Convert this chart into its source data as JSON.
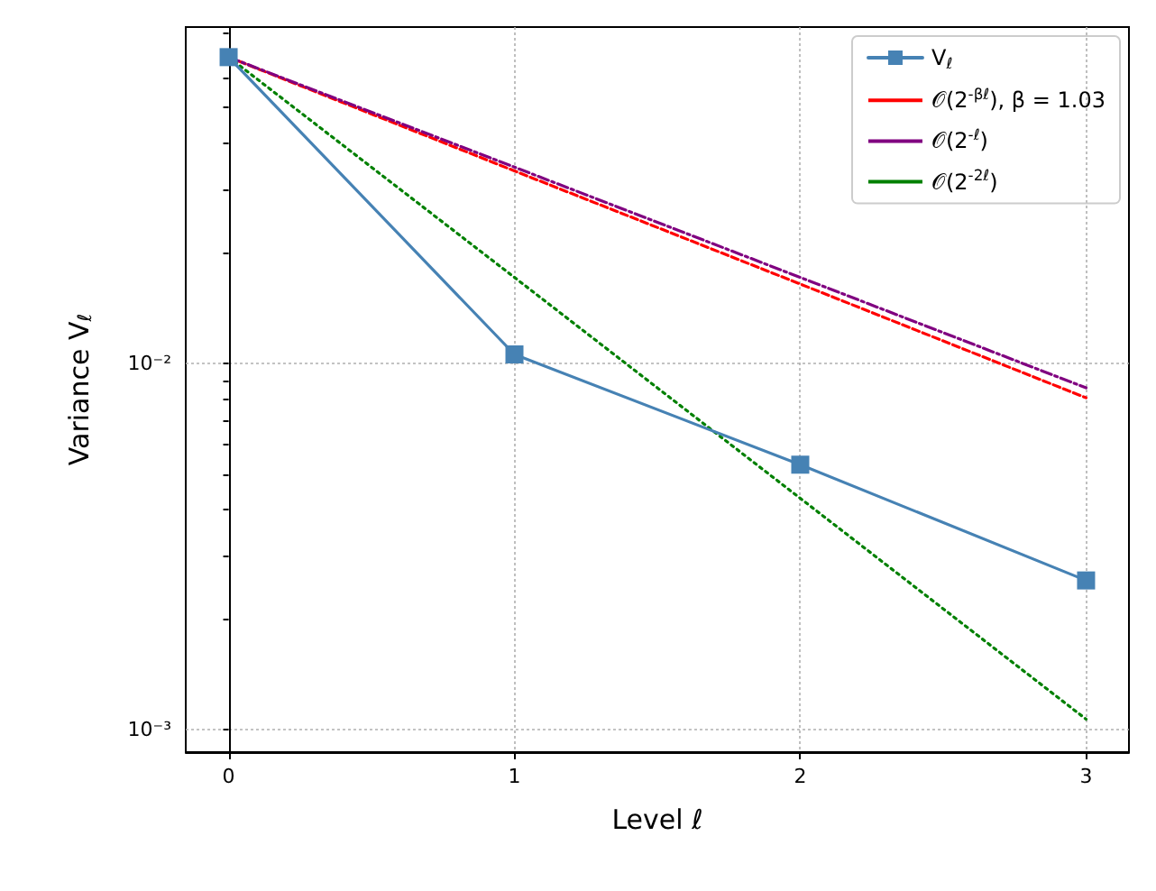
{
  "chart_data": {
    "type": "line",
    "xlabel": "Level ℓ",
    "ylabel": "Variance V$_{ℓ}$",
    "log": "y",
    "grid": true,
    "legend": "top right",
    "x": [
      0,
      1,
      2,
      3
    ],
    "xlim": [
      -0.15,
      3.15
    ],
    "xticks": [
      0,
      1,
      2,
      3
    ],
    "ylim": [
      0.00087,
      0.083
    ],
    "yticks": [
      {
        "value": 0.001,
        "label": "10⁻³"
      },
      {
        "value": 0.002,
        "label": null
      },
      {
        "value": 0.003,
        "label": null
      },
      {
        "value": 0.004,
        "label": null
      },
      {
        "value": 0.005,
        "label": null
      },
      {
        "value": 0.006,
        "label": null
      },
      {
        "value": 0.007,
        "label": null
      },
      {
        "value": 0.008,
        "label": null
      },
      {
        "value": 0.009,
        "label": null
      },
      {
        "value": 0.01,
        "label": "10⁻²"
      },
      {
        "value": 0.02,
        "label": null
      },
      {
        "value": 0.03,
        "label": null
      },
      {
        "value": 0.04,
        "label": null
      },
      {
        "value": 0.05,
        "label": null
      },
      {
        "value": 0.06,
        "label": null
      },
      {
        "value": 0.07,
        "label": null
      },
      {
        "value": 0.08,
        "label": null
      }
    ],
    "series": [
      {
        "name": "V$_{ℓ}$",
        "color": "#4682b4",
        "values": [
          0.0687,
          0.0106,
          0.0053,
          0.00256
        ],
        "marker": "square",
        "line_style": "solid"
      },
      {
        "name": "𝒪(2$^{-βℓ}$), β = 1.03",
        "color": "#ff0000",
        "values": [
          0.0687,
          0.0336,
          0.0165,
          0.00807
        ],
        "marker": "none",
        "line_style": "dashed"
      },
      {
        "name": "𝒪(2$^{-ℓ}$)",
        "color": "#800080",
        "values": [
          0.0687,
          0.0344,
          0.0172,
          0.00859
        ],
        "marker": "none",
        "line_style": "dashdot"
      },
      {
        "name": "𝒪(2$^{-2ℓ}$)",
        "color": "#008000",
        "values": [
          0.0687,
          0.0172,
          0.00429,
          0.00107
        ],
        "marker": "none",
        "line_style": "dotted"
      }
    ]
  }
}
